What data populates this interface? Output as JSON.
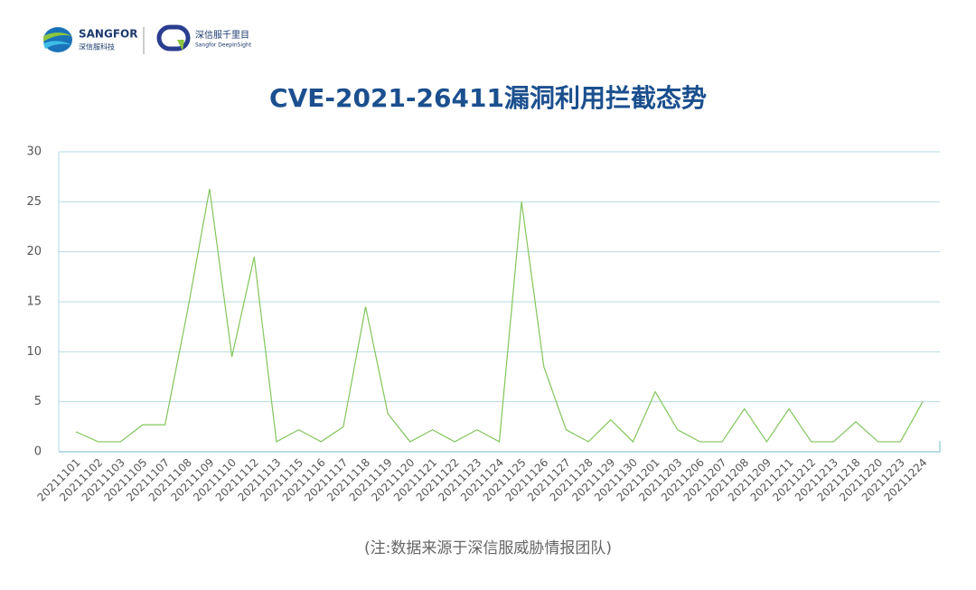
{
  "header": {
    "brand": "SANGFOR",
    "brand_cn": "深信服科技",
    "product_cn": "深信服千里目",
    "product_en": "Sangfor DeepInSight"
  },
  "chart_data": {
    "type": "line",
    "title": "CVE-2021-26411漏洞利用拦截态势",
    "categories": [
      "20211101",
      "20211102",
      "20211103",
      "20211105",
      "20211107",
      "20211108",
      "20211109",
      "20211110",
      "20211112",
      "20211113",
      "20211115",
      "20211116",
      "20211117",
      "20211118",
      "20211119",
      "20211120",
      "20211121",
      "20211122",
      "20211123",
      "20211124",
      "20211125",
      "20211126",
      "20211127",
      "20211128",
      "20211129",
      "20211130",
      "20211201",
      "20211203",
      "20211206",
      "20211207",
      "20211208",
      "20211209",
      "20211211",
      "20211212",
      "20211213",
      "20211218",
      "20211220",
      "20211223",
      "20211224"
    ],
    "values": [
      2,
      1,
      1,
      2.7,
      2.7,
      14,
      26.3,
      9.5,
      19.5,
      1,
      2.2,
      1,
      2.5,
      14.5,
      3.8,
      1,
      2.2,
      1,
      2.2,
      1,
      25,
      8.5,
      2.2,
      1,
      3.2,
      1,
      6,
      2.2,
      1,
      1,
      4.3,
      1,
      4.3,
      1,
      1,
      3,
      1,
      1,
      5
    ],
    "color": "#82c55a",
    "ylim": [
      0,
      30
    ],
    "yticks": [
      0,
      5,
      10,
      15,
      20,
      25,
      30
    ],
    "grid": true,
    "note": "(注:数据来源于深信服威胁情报团队)"
  }
}
